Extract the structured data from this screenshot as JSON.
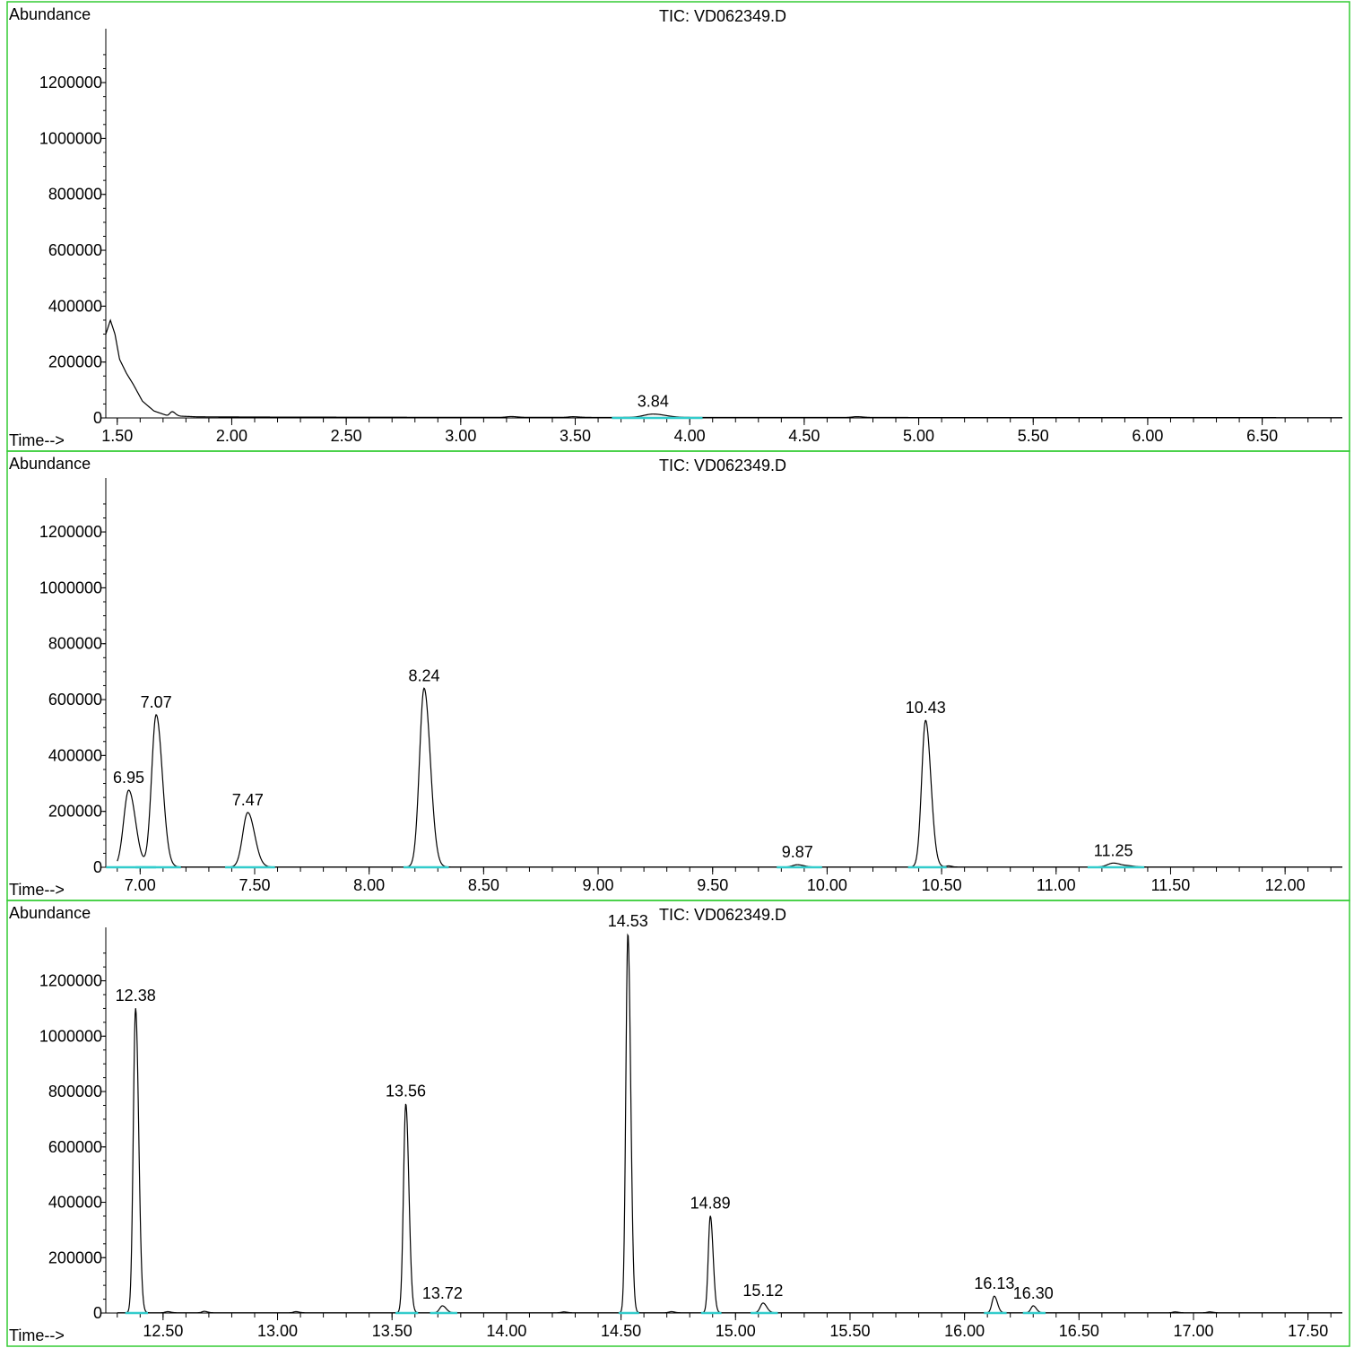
{
  "chart_data": [
    {
      "type": "line",
      "title": "TIC: VD062349.D",
      "ylabel": "Abundance",
      "xlabel": "Time-->",
      "xlim": [
        1.45,
        6.85
      ],
      "ylim": [
        0,
        1380000
      ],
      "xticks": [
        "1.50",
        "2.00",
        "2.50",
        "3.00",
        "3.50",
        "4.00",
        "4.50",
        "5.00",
        "5.50",
        "6.00",
        "6.50"
      ],
      "yticks": [
        "0",
        "200000",
        "400000",
        "600000",
        "800000",
        "1000000",
        "1200000"
      ],
      "early_profile": [
        [
          1.45,
          300000
        ],
        [
          1.47,
          350000
        ],
        [
          1.49,
          300000
        ],
        [
          1.51,
          210000
        ],
        [
          1.54,
          160000
        ],
        [
          1.57,
          120000
        ],
        [
          1.61,
          60000
        ],
        [
          1.66,
          25000
        ],
        [
          1.72,
          8000
        ],
        [
          1.85,
          4000
        ],
        [
          2.2,
          3000
        ],
        [
          3.0,
          2000
        ],
        [
          6.85,
          1000
        ]
      ],
      "peaks": [
        {
          "label": "3.84",
          "rt": 3.84,
          "height": 12000,
          "width": 0.04
        }
      ],
      "minor_peaks": [
        {
          "rt": 1.74,
          "height": 15000,
          "width": 0.01
        },
        {
          "rt": 3.22,
          "height": 3000,
          "width": 0.02
        },
        {
          "rt": 3.49,
          "height": 2500,
          "width": 0.02
        },
        {
          "rt": 4.73,
          "height": 3000,
          "width": 0.02
        }
      ]
    },
    {
      "type": "line",
      "title": "TIC: VD062349.D",
      "ylabel": "Abundance",
      "xlabel": "Time-->",
      "xlim": [
        6.85,
        12.25
      ],
      "ylim": [
        0,
        1380000
      ],
      "xticks": [
        "7.00",
        "7.50",
        "8.00",
        "8.50",
        "9.00",
        "9.50",
        "10.00",
        "10.50",
        "11.00",
        "11.50",
        "12.00"
      ],
      "yticks": [
        "0",
        "200000",
        "400000",
        "600000",
        "800000",
        "1000000",
        "1200000"
      ],
      "peaks": [
        {
          "label": "6.95",
          "rt": 6.95,
          "height": 275000,
          "width": 0.022
        },
        {
          "label": "7.07",
          "rt": 7.07,
          "height": 545000,
          "width": 0.02
        },
        {
          "label": "7.47",
          "rt": 7.47,
          "height": 195000,
          "width": 0.022
        },
        {
          "label": "8.24",
          "rt": 8.24,
          "height": 640000,
          "width": 0.02
        },
        {
          "label": "9.87",
          "rt": 9.87,
          "height": 8000,
          "width": 0.02
        },
        {
          "label": "10.43",
          "rt": 10.43,
          "height": 525000,
          "width": 0.017
        },
        {
          "label": "11.25",
          "rt": 11.25,
          "height": 14000,
          "width": 0.025
        }
      ],
      "minor_peaks": [
        {
          "rt": 10.53,
          "height": 4000,
          "width": 0.01
        },
        {
          "rt": 11.32,
          "height": 3000,
          "width": 0.02
        }
      ]
    },
    {
      "type": "line",
      "title": "TIC: VD062349.D",
      "ylabel": "Abundance",
      "xlabel": "Time-->",
      "xlim": [
        12.25,
        17.65
      ],
      "ylim": [
        0,
        1380000
      ],
      "xticks": [
        "12.50",
        "13.00",
        "13.50",
        "14.00",
        "14.50",
        "15.00",
        "15.50",
        "16.00",
        "16.50",
        "17.00",
        "17.50"
      ],
      "yticks": [
        "0",
        "200000",
        "400000",
        "600000",
        "800000",
        "1000000",
        "1200000"
      ],
      "peaks": [
        {
          "label": "12.38",
          "rt": 12.38,
          "height": 1100000,
          "width": 0.01
        },
        {
          "label": "13.56",
          "rt": 13.56,
          "height": 755000,
          "width": 0.01
        },
        {
          "label": "13.72",
          "rt": 13.72,
          "height": 25000,
          "width": 0.012
        },
        {
          "label": "14.53",
          "rt": 14.53,
          "height": 1370000,
          "width": 0.009
        },
        {
          "label": "14.89",
          "rt": 14.89,
          "height": 350000,
          "width": 0.009
        },
        {
          "label": "15.12",
          "rt": 15.12,
          "height": 35000,
          "width": 0.012
        },
        {
          "label": "16.13",
          "rt": 16.13,
          "height": 60000,
          "width": 0.01
        },
        {
          "label": "16.30",
          "rt": 16.3,
          "height": 25000,
          "width": 0.01
        }
      ],
      "minor_peaks": [
        {
          "rt": 12.52,
          "height": 4000,
          "width": 0.01
        },
        {
          "rt": 12.68,
          "height": 5000,
          "width": 0.01
        },
        {
          "rt": 13.08,
          "height": 4000,
          "width": 0.01
        },
        {
          "rt": 14.25,
          "height": 3000,
          "width": 0.01
        },
        {
          "rt": 14.72,
          "height": 4000,
          "width": 0.01
        },
        {
          "rt": 16.92,
          "height": 3000,
          "width": 0.01
        },
        {
          "rt": 17.07,
          "height": 3000,
          "width": 0.01
        }
      ]
    }
  ]
}
